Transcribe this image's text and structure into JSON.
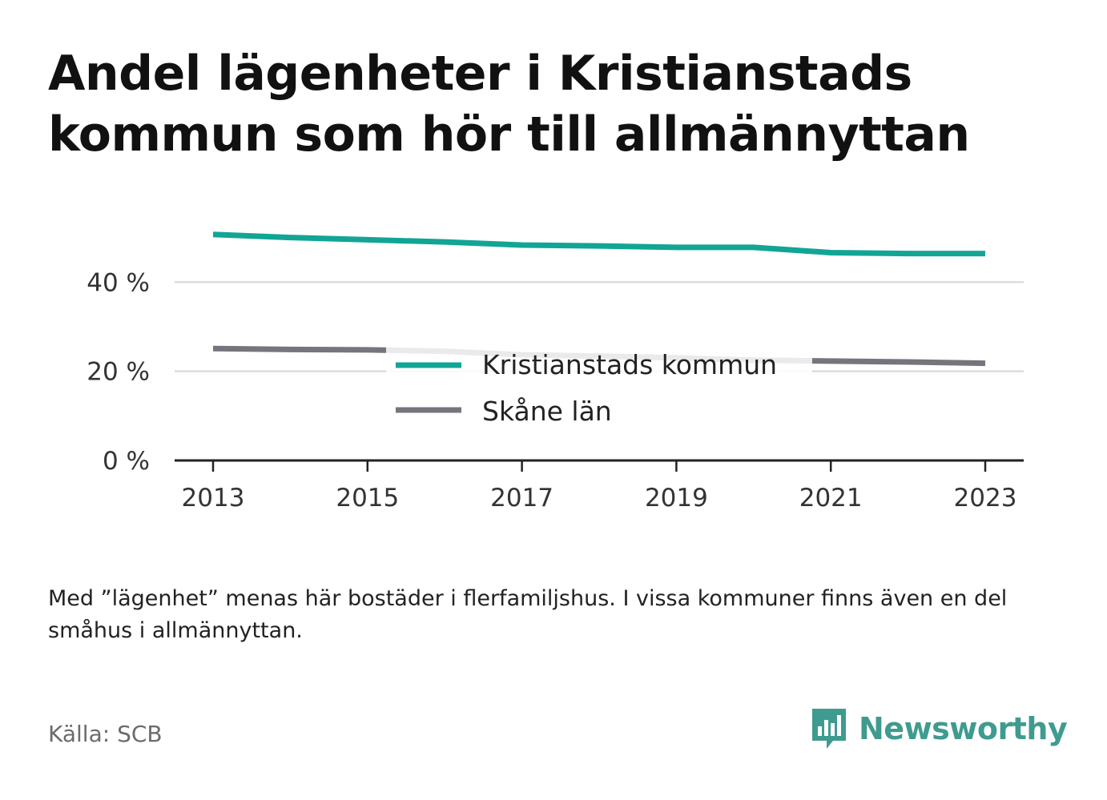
{
  "title": "Andel lägenheter i Kristianstads kommun som hör till allmännyttan",
  "note": "Med ”lägenhet” menas här bostäder i flerfamiljshus. I vissa kommuner finns även en del småhus i allmännyttan.",
  "source": "Källa: SCB",
  "brand": {
    "name": "Newsworthy",
    "icon": "newsworthy-logo-icon",
    "color": "#3f9b8f"
  },
  "chart_data": {
    "type": "line",
    "title": "Andel lägenheter i Kristianstads kommun som hör till allmännyttan",
    "xlabel": "",
    "ylabel": "",
    "x": [
      2013,
      2014,
      2015,
      2016,
      2017,
      2018,
      2019,
      2020,
      2021,
      2022,
      2023
    ],
    "x_ticks": [
      "2013",
      "2015",
      "2017",
      "2019",
      "2021",
      "2023"
    ],
    "y_ticks": [
      {
        "value": 0,
        "label": "0 %"
      },
      {
        "value": 20,
        "label": "20 %"
      },
      {
        "value": 40,
        "label": "40 %"
      }
    ],
    "ylim": [
      0,
      44
    ],
    "grid": true,
    "legend_position": "center",
    "series": [
      {
        "name": "Kristianstads kommun",
        "color": "#12a596",
        "values": [
          50.7,
          50.0,
          49.5,
          49.0,
          48.3,
          48.1,
          47.8,
          47.8,
          46.6,
          46.4,
          46.4
        ]
      },
      {
        "name": "Skåne län",
        "color": "#76757d",
        "values": [
          25.1,
          24.9,
          24.8,
          24.5,
          23.7,
          23.4,
          23.0,
          22.5,
          22.3,
          22.1,
          21.8
        ]
      }
    ]
  }
}
